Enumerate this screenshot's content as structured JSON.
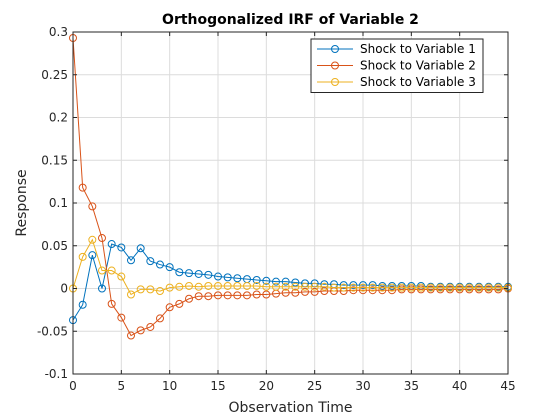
{
  "chart_data": {
    "type": "line",
    "title": "Orthogonalized IRF of Variable 2",
    "xlabel": "Observation Time",
    "ylabel": "Response",
    "xlim": [
      0,
      45
    ],
    "ylim": [
      -0.1,
      0.3
    ],
    "xticks": [
      0,
      5,
      10,
      15,
      20,
      25,
      30,
      35,
      40,
      45
    ],
    "yticks": [
      -0.1,
      -0.05,
      0,
      0.05,
      0.1,
      0.15,
      0.2,
      0.25,
      0.3
    ],
    "ytick_labels": [
      "-0.1",
      "-0.05",
      "0",
      "0.05",
      "0.1",
      "0.15",
      "0.2",
      "0.25",
      "0.3"
    ],
    "grid": true,
    "legend_position": "top-right",
    "marker": "circle",
    "x": [
      0,
      1,
      2,
      3,
      4,
      5,
      6,
      7,
      8,
      9,
      10,
      11,
      12,
      13,
      14,
      15,
      16,
      17,
      18,
      19,
      20,
      21,
      22,
      23,
      24,
      25,
      26,
      27,
      28,
      29,
      30,
      31,
      32,
      33,
      34,
      35,
      36,
      37,
      38,
      39,
      40,
      41,
      42,
      43,
      44,
      45
    ],
    "series": [
      {
        "name": "Shock to Variable 1",
        "color": "#0072BD",
        "values": [
          -0.037,
          -0.019,
          0.039,
          0.0,
          0.052,
          0.048,
          0.033,
          0.047,
          0.032,
          0.028,
          0.025,
          0.019,
          0.018,
          0.017,
          0.016,
          0.014,
          0.013,
          0.012,
          0.011,
          0.01,
          0.009,
          0.008,
          0.008,
          0.007,
          0.006,
          0.006,
          0.005,
          0.005,
          0.004,
          0.004,
          0.004,
          0.004,
          0.003,
          0.003,
          0.003,
          0.003,
          0.003,
          0.002,
          0.002,
          0.002,
          0.002,
          0.002,
          0.002,
          0.002,
          0.002,
          0.002
        ]
      },
      {
        "name": "Shock to Variable 2",
        "color": "#D95319",
        "values": [
          0.293,
          0.118,
          0.096,
          0.059,
          -0.018,
          -0.034,
          -0.055,
          -0.049,
          -0.045,
          -0.035,
          -0.022,
          -0.018,
          -0.012,
          -0.009,
          -0.009,
          -0.008,
          -0.008,
          -0.008,
          -0.008,
          -0.007,
          -0.007,
          -0.006,
          -0.005,
          -0.005,
          -0.004,
          -0.004,
          -0.003,
          -0.003,
          -0.003,
          -0.002,
          -0.002,
          -0.002,
          -0.002,
          -0.002,
          -0.001,
          -0.001,
          -0.001,
          -0.001,
          -0.001,
          -0.001,
          -0.001,
          -0.001,
          -0.001,
          -0.001,
          -0.001,
          0.0
        ]
      },
      {
        "name": "Shock to Variable 3",
        "color": "#EDB120",
        "values": [
          0.0,
          0.037,
          0.057,
          0.021,
          0.021,
          0.014,
          -0.007,
          -0.001,
          -0.001,
          -0.003,
          0.001,
          0.002,
          0.003,
          0.002,
          0.003,
          0.003,
          0.003,
          0.003,
          0.003,
          0.003,
          0.002,
          0.002,
          0.002,
          0.002,
          0.002,
          0.002,
          0.002,
          0.001,
          0.001,
          0.001,
          0.001,
          0.001,
          0.001,
          0.001,
          0.001,
          0.001,
          0.001,
          0.001,
          0.001,
          0.001,
          0.001,
          0.001,
          0.001,
          0.001,
          0.001,
          0.001
        ]
      }
    ]
  }
}
